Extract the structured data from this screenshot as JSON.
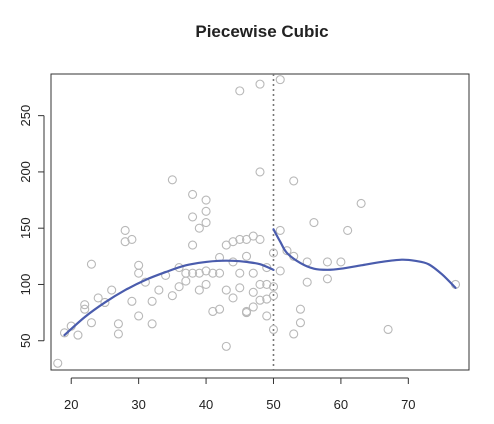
{
  "chart_data": {
    "type": "scatter",
    "title": "Piecewise Cubic",
    "xlabel": "",
    "ylabel": "",
    "xlim": [
      17,
      79
    ],
    "ylim": [
      24,
      287
    ],
    "xticks": [
      20,
      30,
      40,
      50,
      60,
      70
    ],
    "yticks": [
      50,
      100,
      150,
      200,
      250
    ],
    "knot_x": 50,
    "colors": {
      "points": "#b8b8b8",
      "curve": "#4a5cad",
      "knot": "#777777"
    },
    "points": [
      [
        18,
        30
      ],
      [
        19,
        57
      ],
      [
        20,
        63
      ],
      [
        21,
        55
      ],
      [
        22,
        78
      ],
      [
        22,
        82
      ],
      [
        23,
        118
      ],
      [
        23,
        66
      ],
      [
        24,
        88
      ],
      [
        25,
        84
      ],
      [
        26,
        95
      ],
      [
        27,
        65
      ],
      [
        27,
        56
      ],
      [
        28,
        148
      ],
      [
        28,
        138
      ],
      [
        29,
        140
      ],
      [
        29,
        85
      ],
      [
        30,
        117
      ],
      [
        30,
        110
      ],
      [
        30,
        72
      ],
      [
        31,
        102
      ],
      [
        32,
        85
      ],
      [
        32,
        65
      ],
      [
        33,
        95
      ],
      [
        34,
        108
      ],
      [
        35,
        193
      ],
      [
        35,
        90
      ],
      [
        36,
        115
      ],
      [
        36,
        98
      ],
      [
        37,
        103
      ],
      [
        37,
        110
      ],
      [
        38,
        180
      ],
      [
        38,
        160
      ],
      [
        38,
        135
      ],
      [
        38,
        110
      ],
      [
        39,
        150
      ],
      [
        39,
        110
      ],
      [
        39,
        95
      ],
      [
        40,
        175
      ],
      [
        40,
        165
      ],
      [
        40,
        155
      ],
      [
        40,
        112
      ],
      [
        40,
        100
      ],
      [
        41,
        110
      ],
      [
        41,
        76
      ],
      [
        42,
        124
      ],
      [
        42,
        110
      ],
      [
        42,
        78
      ],
      [
        43,
        135
      ],
      [
        43,
        95
      ],
      [
        43,
        45
      ],
      [
        44,
        138
      ],
      [
        44,
        120
      ],
      [
        44,
        88
      ],
      [
        45,
        272
      ],
      [
        45,
        140
      ],
      [
        45,
        110
      ],
      [
        45,
        97
      ],
      [
        46,
        140
      ],
      [
        46,
        125
      ],
      [
        46,
        76
      ],
      [
        46,
        75
      ],
      [
        47,
        143
      ],
      [
        47,
        110
      ],
      [
        47,
        93
      ],
      [
        47,
        80
      ],
      [
        48,
        278
      ],
      [
        48,
        200
      ],
      [
        48,
        140
      ],
      [
        48,
        100
      ],
      [
        48,
        86
      ],
      [
        49,
        115
      ],
      [
        49,
        100
      ],
      [
        49,
        87
      ],
      [
        49,
        72
      ],
      [
        50,
        128
      ],
      [
        50,
        98
      ],
      [
        50,
        90
      ],
      [
        50,
        60
      ],
      [
        51,
        282
      ],
      [
        51,
        148
      ],
      [
        51,
        112
      ],
      [
        52,
        130
      ],
      [
        53,
        192
      ],
      [
        53,
        125
      ],
      [
        53,
        56
      ],
      [
        54,
        78
      ],
      [
        54,
        66
      ],
      [
        55,
        120
      ],
      [
        55,
        102
      ],
      [
        56,
        155
      ],
      [
        58,
        120
      ],
      [
        58,
        105
      ],
      [
        60,
        120
      ],
      [
        61,
        148
      ],
      [
        63,
        172
      ],
      [
        67,
        60
      ],
      [
        77,
        100
      ]
    ],
    "curve_left": [
      [
        19,
        55
      ],
      [
        22,
        71
      ],
      [
        25,
        84
      ],
      [
        28,
        95
      ],
      [
        31,
        104
      ],
      [
        34,
        111
      ],
      [
        37,
        117
      ],
      [
        40,
        120
      ],
      [
        42,
        121
      ],
      [
        44,
        121
      ],
      [
        46,
        120
      ],
      [
        48,
        118
      ],
      [
        50,
        113
      ]
    ],
    "curve_right": [
      [
        50,
        149
      ],
      [
        51,
        138
      ],
      [
        52,
        128
      ],
      [
        54,
        119
      ],
      [
        56,
        114
      ],
      [
        58,
        113
      ],
      [
        60,
        114
      ],
      [
        63,
        117
      ],
      [
        66,
        120
      ],
      [
        69,
        122
      ],
      [
        71,
        121
      ],
      [
        73,
        118
      ],
      [
        75,
        109
      ],
      [
        77,
        97
      ]
    ]
  }
}
